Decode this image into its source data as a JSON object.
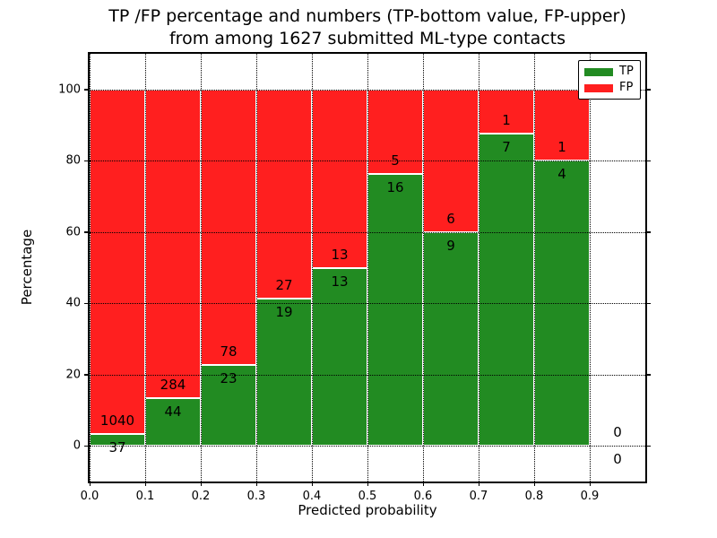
{
  "figure": {
    "title_line1": "TP /FP percentage and numbers (TP-bottom value, FP-upper)",
    "title_line2": "from among 1627 submitted ML-type contacts",
    "total_contacts": "1627"
  },
  "chart_data": {
    "type": "bar",
    "stacked": true,
    "title": "TP /FP percentage and numbers (TP-bottom value, FP-upper) from among 1627 submitted ML-type contacts",
    "xlabel": "Predicted probability",
    "ylabel": "Percentage",
    "xlim": [
      0.0,
      1.0
    ],
    "ylim": [
      -10,
      110
    ],
    "grid": true,
    "legend_position": "upper right",
    "bin_width": 0.1,
    "categories": [
      "0.0",
      "0.1",
      "0.2",
      "0.3",
      "0.4",
      "0.5",
      "0.6",
      "0.7",
      "0.8",
      "0.9"
    ],
    "series": [
      {
        "name": "TP",
        "color": "#228B22",
        "values": [
          37,
          44,
          23,
          19,
          13,
          16,
          9,
          7,
          4,
          0
        ]
      },
      {
        "name": "FP",
        "color": "#FF1F1F",
        "values": [
          1040,
          284,
          78,
          27,
          13,
          5,
          6,
          1,
          1,
          0
        ]
      }
    ],
    "bins": [
      {
        "x0": 0.0,
        "x1": 0.1,
        "tp": 37,
        "fp": 1040,
        "tp_pct": 3.4
      },
      {
        "x0": 0.1,
        "x1": 0.2,
        "tp": 44,
        "fp": 284,
        "tp_pct": 13.4
      },
      {
        "x0": 0.2,
        "x1": 0.3,
        "tp": 23,
        "fp": 78,
        "tp_pct": 22.8
      },
      {
        "x0": 0.3,
        "x1": 0.4,
        "tp": 19,
        "fp": 27,
        "tp_pct": 41.3
      },
      {
        "x0": 0.4,
        "x1": 0.5,
        "tp": 13,
        "fp": 13,
        "tp_pct": 50.0
      },
      {
        "x0": 0.5,
        "x1": 0.6,
        "tp": 16,
        "fp": 5,
        "tp_pct": 76.2
      },
      {
        "x0": 0.6,
        "x1": 0.7,
        "tp": 9,
        "fp": 6,
        "tp_pct": 60.0
      },
      {
        "x0": 0.7,
        "x1": 0.8,
        "tp": 7,
        "fp": 1,
        "tp_pct": 87.5
      },
      {
        "x0": 0.8,
        "x1": 0.9,
        "tp": 4,
        "fp": 1,
        "tp_pct": 80.0
      },
      {
        "x0": 0.9,
        "x1": 1.0,
        "tp": 0,
        "fp": 0,
        "tp_pct": null
      }
    ],
    "xticks": [
      "0.0",
      "0.1",
      "0.2",
      "0.3",
      "0.4",
      "0.5",
      "0.6",
      "0.7",
      "0.8",
      "0.9"
    ],
    "yticks": [
      "0",
      "20",
      "40",
      "60",
      "80",
      "100"
    ],
    "legend": [
      {
        "label": "TP",
        "color": "#228B22"
      },
      {
        "label": "FP",
        "color": "#FF1F1F"
      }
    ]
  }
}
